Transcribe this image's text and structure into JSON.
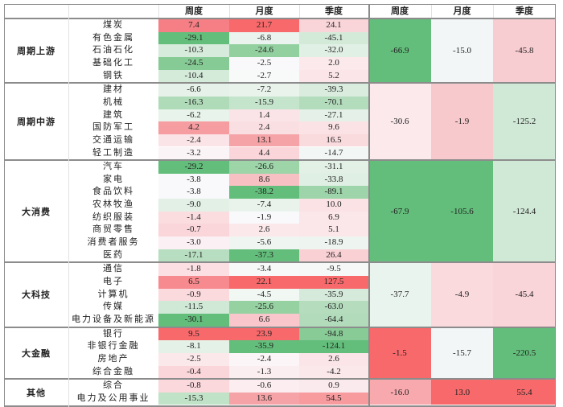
{
  "headers": {
    "industry_cols": [
      "周度",
      "月度",
      "季度"
    ],
    "aggregate_cols": [
      "周度",
      "月度",
      "季度"
    ]
  },
  "groups": [
    {
      "name": "周期上游",
      "aggregate": [
        "-66.9",
        "-15.0",
        "-45.8"
      ],
      "aggregate_colors": [
        "#63be7b",
        "#f2f6f6",
        "#f8cdd1"
      ],
      "rows": [
        {
          "industry": "煤炭",
          "values": [
            "7.4",
            "21.7",
            "24.1"
          ],
          "colors": [
            "#f57f84",
            "#f8696b",
            "#f9d5d9"
          ]
        },
        {
          "industry": "有色金属",
          "values": [
            "-29.1",
            "-6.8",
            "-45.1"
          ],
          "colors": [
            "#63be7b",
            "#eaf3ee",
            "#d4ead9"
          ]
        },
        {
          "industry": "石油石化",
          "values": [
            "-10.3",
            "-24.6",
            "-32.0"
          ],
          "colors": [
            "#d6ebdb",
            "#93d09f",
            "#e1f0e5"
          ]
        },
        {
          "industry": "基础化工",
          "values": [
            "-24.5",
            "-2.5",
            "2.0"
          ],
          "colors": [
            "#86cb95",
            "#f9f9fb",
            "#fbe9ec"
          ]
        },
        {
          "industry": "钢铁",
          "values": [
            "-10.4",
            "-2.7",
            "5.2"
          ],
          "colors": [
            "#d5ebda",
            "#f8fafa",
            "#fbe5e8"
          ]
        }
      ]
    },
    {
      "name": "周期中游",
      "aggregate": [
        "-30.6",
        "-1.9",
        "-125.2"
      ],
      "aggregate_colors": [
        "#fbe9ec",
        "#f8c9cc",
        "#d0e8d6"
      ],
      "rows": [
        {
          "industry": "建材",
          "values": [
            "-6.6",
            "-7.2",
            "-39.3"
          ],
          "colors": [
            "#e6f2e9",
            "#e9f3ec",
            "#d9ecde"
          ]
        },
        {
          "industry": "机械",
          "values": [
            "-16.3",
            "-15.9",
            "-70.1"
          ],
          "colors": [
            "#b0dbb9",
            "#c5e4cc",
            "#b3dcbc"
          ]
        },
        {
          "industry": "建筑",
          "values": [
            "-6.2",
            "1.4",
            "-27.1"
          ],
          "colors": [
            "#e8f3eb",
            "#fae4e7",
            "#e5f1e8"
          ]
        },
        {
          "industry": "国防军工",
          "values": [
            "4.2",
            "2.4",
            "9.6"
          ],
          "colors": [
            "#f69da1",
            "#fadfe2",
            "#fbe2e5"
          ]
        },
        {
          "industry": "交通运输",
          "values": [
            "-2.4",
            "13.1",
            "16.5"
          ],
          "colors": [
            "#fbe4e7",
            "#f5a3a7",
            "#f9dadd"
          ]
        },
        {
          "industry": "轻工制造",
          "values": [
            "-3.2",
            "4.4",
            "-14.7"
          ],
          "colors": [
            "#faf4f6",
            "#fad6da",
            "#f2f7f5"
          ]
        }
      ]
    },
    {
      "name": "大消费",
      "aggregate": [
        "-67.9",
        "-105.6",
        "-124.4"
      ],
      "aggregate_colors": [
        "#63be7b",
        "#63be7b",
        "#d0e8d6"
      ],
      "rows": [
        {
          "industry": "汽车",
          "values": [
            "-29.2",
            "-26.6",
            "-31.1"
          ],
          "colors": [
            "#63be7b",
            "#9dd4a8",
            "#e2f0e6"
          ]
        },
        {
          "industry": "家电",
          "values": [
            "-3.8",
            "8.6",
            "-33.8"
          ],
          "colors": [
            "#f9f9fb",
            "#f7c0c3",
            "#dfefe3"
          ]
        },
        {
          "industry": "食品饮料",
          "values": [
            "-3.8",
            "-38.2",
            "-89.1"
          ],
          "colors": [
            "#f9f9fb",
            "#63be7b",
            "#9ed4a9"
          ]
        },
        {
          "industry": "农林牧渔",
          "values": [
            "-9.0",
            "-7.4",
            "10.0"
          ],
          "colors": [
            "#e2f0e6",
            "#e9f3ec",
            "#fbe2e5"
          ]
        },
        {
          "industry": "纺织服装",
          "values": [
            "-1.4",
            "-1.9",
            "6.9"
          ],
          "colors": [
            "#fbdde0",
            "#f9f9fb",
            "#fbe6e9"
          ]
        },
        {
          "industry": "商贸零售",
          "values": [
            "-0.7",
            "2.6",
            "5.1"
          ],
          "colors": [
            "#fad6da",
            "#fbe8eb",
            "#fbe7ea"
          ]
        },
        {
          "industry": "消费者服务",
          "values": [
            "-3.0",
            "-5.6",
            "-18.9"
          ],
          "colors": [
            "#fbf0f3",
            "#eff6f2",
            "#eef5f0"
          ]
        },
        {
          "industry": "医药",
          "values": [
            "-17.1",
            "-37.3",
            "26.4"
          ],
          "colors": [
            "#b7dec0",
            "#63be7b",
            "#f9d0d4"
          ]
        }
      ]
    },
    {
      "name": "大科技",
      "aggregate": [
        "-37.7",
        "-4.9",
        "-45.4"
      ],
      "aggregate_colors": [
        "#eaf4ee",
        "#fadadd",
        "#f9d4d8"
      ],
      "rows": [
        {
          "industry": "通信",
          "values": [
            "-1.8",
            "-3.4",
            "-9.5"
          ],
          "colors": [
            "#fbdfe2",
            "#f6f9f8",
            "#f5f8f7"
          ]
        },
        {
          "industry": "电子",
          "values": [
            "6.5",
            "22.1",
            "127.5"
          ],
          "colors": [
            "#f68a8e",
            "#f8696b",
            "#f8696b"
          ]
        },
        {
          "industry": "计算机",
          "values": [
            "-0.9",
            "-4.5",
            "-35.9"
          ],
          "colors": [
            "#fbdadd",
            "#f1f7f3",
            "#d5eadb"
          ]
        },
        {
          "industry": "传媒",
          "values": [
            "-11.5",
            "-25.6",
            "-63.0"
          ],
          "colors": [
            "#d0e8d6",
            "#96d1a2",
            "#b4dcbd"
          ]
        },
        {
          "industry": "电力设备及新能源",
          "values": [
            "-30.1",
            "6.6",
            "-64.4"
          ],
          "colors": [
            "#63be7b",
            "#f9c7cb",
            "#b2dbbb"
          ]
        }
      ]
    },
    {
      "name": "大金融",
      "aggregate": [
        "-1.5",
        "-15.7",
        "-220.5"
      ],
      "aggregate_colors": [
        "#f8696b",
        "#f2f6f6",
        "#63be7b"
      ],
      "rows": [
        {
          "industry": "银行",
          "values": [
            "9.5",
            "23.9",
            "-94.8"
          ],
          "colors": [
            "#f8696b",
            "#f8696b",
            "#88cb96"
          ]
        },
        {
          "industry": "非银行金融",
          "values": [
            "-8.1",
            "-35.9",
            "-124.1"
          ],
          "colors": [
            "#e4f1e7",
            "#63be7b",
            "#63be7b"
          ]
        },
        {
          "industry": "房地产",
          "values": [
            "-2.5",
            "-2.4",
            "2.6"
          ],
          "colors": [
            "#fbe8eb",
            "#fbf5f7",
            "#fbe5e8"
          ]
        },
        {
          "industry": "综合金融",
          "values": [
            "-0.4",
            "-1.3",
            "-4.2"
          ],
          "colors": [
            "#fad5d9",
            "#fbeef1",
            "#fbe8eb"
          ]
        }
      ]
    },
    {
      "name": "其他",
      "aggregate": [
        "-16.0",
        "13.0",
        "55.4"
      ],
      "aggregate_colors": [
        "#f7a9ad",
        "#f8696b",
        "#f8696b"
      ],
      "rows": [
        {
          "industry": "综合",
          "values": [
            "-0.8",
            "-0.6",
            "0.9"
          ],
          "colors": [
            "#fad8dc",
            "#fbedf0",
            "#fbeaed"
          ]
        },
        {
          "industry": "电力及公用事业",
          "values": [
            "-15.3",
            "13.6",
            "54.5"
          ],
          "colors": [
            "#c0e2c7",
            "#f5a3a7",
            "#f79b9f"
          ]
        }
      ]
    }
  ]
}
